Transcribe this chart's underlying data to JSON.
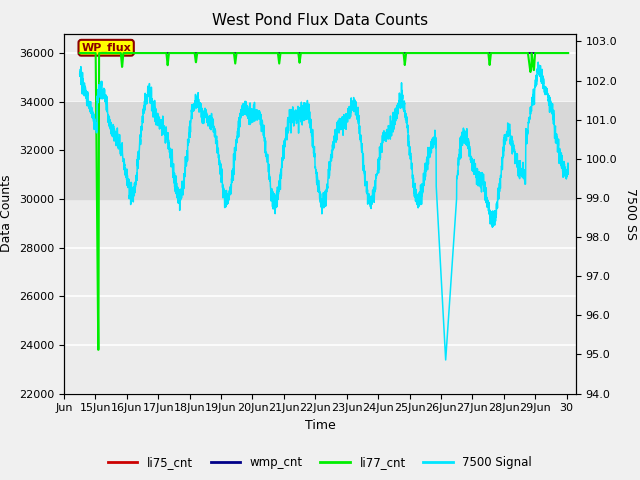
{
  "title": "West Pond Flux Data Counts",
  "xlabel": "Time",
  "ylabel_left": "Data Counts",
  "ylabel_right": "7500 SS",
  "xlim_days": [
    14.0,
    30.3
  ],
  "ylim_left": [
    22000,
    36800
  ],
  "ylim_right": [
    94.0,
    103.2
  ],
  "background_color": "#f0f0f0",
  "plot_bg_color": "#ececec",
  "grid_color": "#ffffff",
  "wp_flux_box_color": "#ffff00",
  "wp_flux_text_color": "#8b0000",
  "wp_flux_border_color": "#8b0000",
  "li77_color": "#00ee00",
  "signal7500_color": "#00e5ff",
  "li75_color": "#cc0000",
  "wmp_color": "#000088",
  "xtick_labels": [
    "Jun",
    "15Jun",
    "16Jun",
    "17Jun",
    "18Jun",
    "19Jun",
    "20Jun",
    "21Jun",
    "22Jun",
    "23Jun",
    "24Jun",
    "25Jun",
    "26Jun",
    "27Jun",
    "28Jun",
    "29Jun",
    "30"
  ],
  "xtick_positions": [
    14.0,
    15.0,
    16.0,
    17.0,
    18.0,
    19.0,
    20.0,
    21.0,
    22.0,
    23.0,
    24.0,
    25.0,
    26.0,
    27.0,
    28.0,
    29.0,
    30.0
  ],
  "ytick_left": [
    22000,
    24000,
    26000,
    28000,
    30000,
    32000,
    34000,
    36000
  ],
  "ytick_right": [
    94.0,
    95.0,
    96.0,
    97.0,
    98.0,
    99.0,
    100.0,
    101.0,
    102.0,
    103.0
  ],
  "shaded_band": [
    30000,
    34000
  ],
  "legend_entries": [
    "li75_cnt",
    "wmp_cnt",
    "li77_cnt",
    "7500 Signal"
  ],
  "legend_colors": [
    "#cc0000",
    "#000088",
    "#00ee00",
    "#00e5ff"
  ],
  "figsize": [
    6.4,
    4.8
  ],
  "dpi": 100
}
